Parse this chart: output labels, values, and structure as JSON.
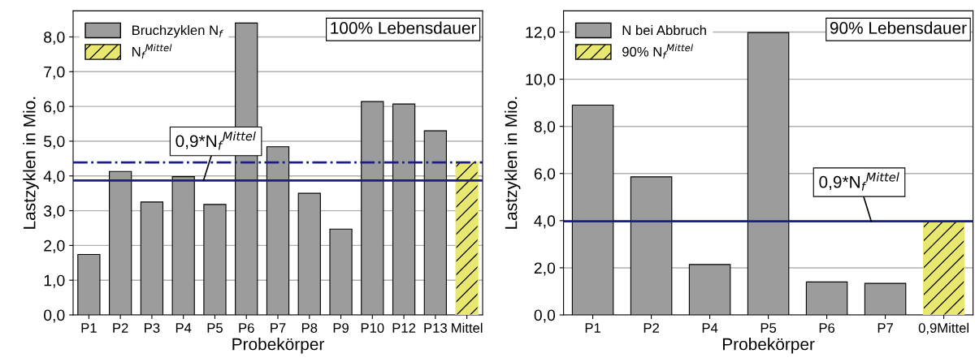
{
  "chart_data": [
    {
      "type": "bar",
      "xlabel": "Probekörper",
      "ylabel": "Lastzyklen in Mio.",
      "categories": [
        "P1",
        "P2",
        "P3",
        "P4",
        "P5",
        "P6",
        "P7",
        "P8",
        "P9",
        "P10",
        "P12",
        "P13",
        "Mittel"
      ],
      "series": [
        {
          "name": "Bruchzyklen N$_{f}$",
          "color": "#9c9c9c",
          "values": [
            1.74,
            4.13,
            3.25,
            3.98,
            3.18,
            8.4,
            4.84,
            3.5,
            2.47,
            6.14,
            6.07,
            5.3,
            null
          ]
        },
        {
          "name": "N$_{f}$$^{Mittel}$",
          "color": "#e8e870",
          "values": [
            null,
            null,
            null,
            null,
            null,
            null,
            null,
            null,
            null,
            null,
            null,
            null,
            4.41
          ]
        }
      ],
      "ylim": [
        0,
        8.75
      ],
      "yticks": [
        {
          "value": 0,
          "label": "0,0"
        },
        {
          "value": 1,
          "label": "1,0"
        },
        {
          "value": 2,
          "label": "2,0"
        },
        {
          "value": 3,
          "label": "3,0"
        },
        {
          "value": 4,
          "label": "4,0"
        },
        {
          "value": 5,
          "label": "5,0"
        },
        {
          "value": 6,
          "label": "6,0"
        },
        {
          "value": 7,
          "label": "7,0"
        },
        {
          "value": 8,
          "label": "8,0"
        }
      ],
      "ref_lines": [
        {
          "axis": "y",
          "value": 3.87,
          "label": "0,9*N$_{f}$$^{Mittel}$",
          "color": "#1c1c8c",
          "line_style": "solid"
        },
        {
          "axis": "y",
          "value": 4.39,
          "color": "#1c1c8c",
          "line_style": "dashdot"
        }
      ],
      "annotations": [
        "100% Lebensdauer"
      ],
      "grid": "y",
      "legend": "top left"
    },
    {
      "type": "bar",
      "xlabel": "Probekörper",
      "ylabel": "Lastzyklen in Mio.",
      "categories": [
        "P1",
        "P2",
        "P4",
        "P5",
        "P6",
        "P7",
        "0,9Mittel"
      ],
      "series": [
        {
          "name": "N bei Abbruch",
          "color": "#9c9c9c",
          "values": [
            8.9,
            5.86,
            2.14,
            11.98,
            1.4,
            1.34,
            null
          ]
        },
        {
          "name": "90% N$_{f}$$^{Mittel}$",
          "color": "#e8e870",
          "values": [
            null,
            null,
            null,
            null,
            null,
            null,
            3.97
          ]
        }
      ],
      "ylim": [
        0,
        12.9
      ],
      "yticks": [
        {
          "value": 0,
          "label": "0,0"
        },
        {
          "value": 2,
          "label": "2,0"
        },
        {
          "value": 4,
          "label": "4,0"
        },
        {
          "value": 6,
          "label": "6,0"
        },
        {
          "value": 8,
          "label": "8,0"
        },
        {
          "value": 10,
          "label": "10,0"
        },
        {
          "value": 12,
          "label": "12,0"
        }
      ],
      "ref_lines": [
        {
          "axis": "y",
          "value": 3.97,
          "label": "0,9*N$_{f}$$^{Mittel}$",
          "color": "#1c1c8c",
          "line_style": "solid"
        }
      ],
      "annotations": [
        "90% Lebensdauer"
      ],
      "grid": "y",
      "legend": "top left"
    }
  ]
}
